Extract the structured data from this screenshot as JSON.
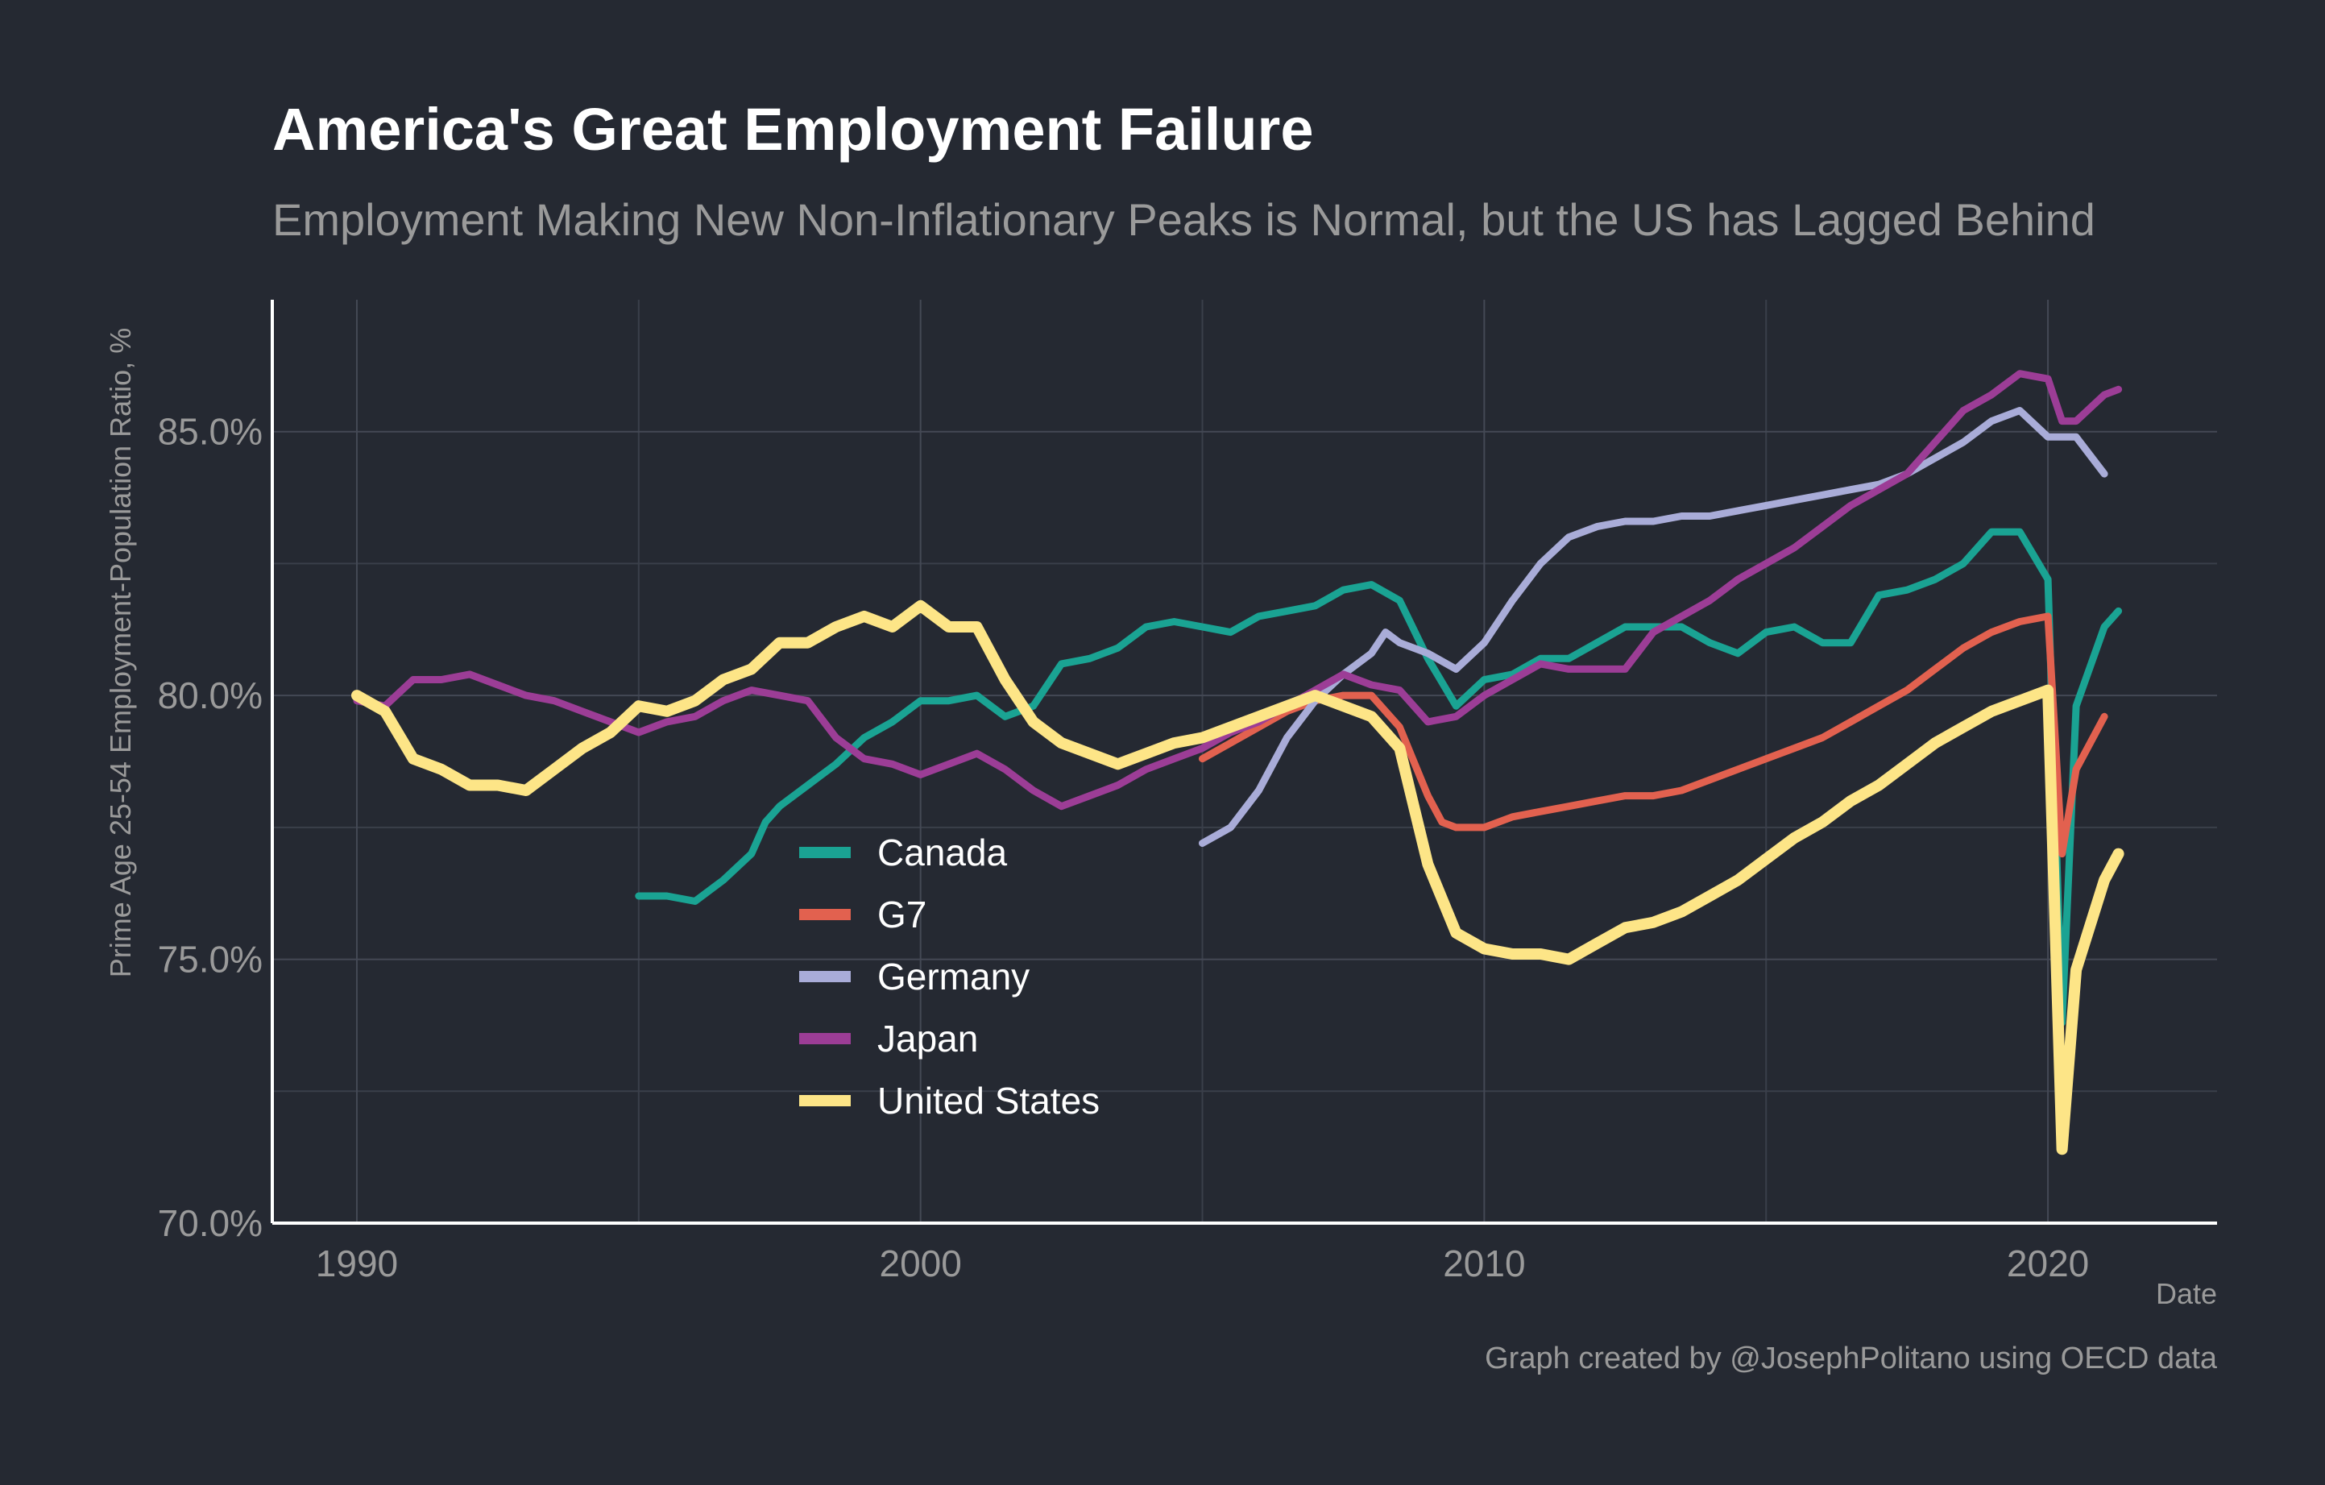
{
  "chart_data": {
    "type": "line",
    "title": "America's Great Employment Failure",
    "subtitle": "Employment Making New Non-Inflationary Peaks is Normal, but the US has Lagged Behind",
    "xlabel": "Date",
    "ylabel": "Prime Age 25-54 Employment-Population Ratio, %",
    "caption": "Graph created by @JosephPolitano using OECD data",
    "xlim": [
      1988.5,
      2023.0
    ],
    "ylim": [
      70.0,
      87.5
    ],
    "x_ticks": [
      1990,
      2000,
      2010,
      2020
    ],
    "x_tick_labels": [
      "1990",
      "2000",
      "2010",
      "2020"
    ],
    "y_ticks": [
      70,
      75,
      80,
      85
    ],
    "y_tick_labels": [
      "70.0%",
      "75.0%",
      "80.0%",
      "85.0%"
    ],
    "grid": true,
    "legend_position": "inside-center-left",
    "series": [
      {
        "name": "Canada",
        "color": "#1aa393",
        "x": [
          1995.0,
          1995.5,
          1996.0,
          1996.5,
          1997.0,
          1997.25,
          1997.5,
          1998.0,
          1998.5,
          1999.0,
          1999.5,
          2000.0,
          2000.5,
          2001.0,
          2001.5,
          2002.0,
          2002.5,
          2003.0,
          2003.5,
          2004.0,
          2004.5,
          2005.0,
          2005.5,
          2006.0,
          2006.5,
          2007.0,
          2007.5,
          2008.0,
          2008.5,
          2009.0,
          2009.5,
          2010.0,
          2010.5,
          2011.0,
          2011.5,
          2012.0,
          2012.5,
          2013.0,
          2013.5,
          2014.0,
          2014.5,
          2015.0,
          2015.5,
          2016.0,
          2016.5,
          2017.0,
          2017.5,
          2018.0,
          2018.5,
          2019.0,
          2019.5,
          2020.0,
          2020.25,
          2020.5,
          2021.0,
          2021.25
        ],
        "y": [
          76.2,
          76.2,
          76.1,
          76.5,
          77.0,
          77.6,
          77.9,
          78.3,
          78.7,
          79.2,
          79.5,
          79.9,
          79.9,
          80.0,
          79.6,
          79.8,
          80.6,
          80.7,
          80.9,
          81.3,
          81.4,
          81.3,
          81.2,
          81.5,
          81.6,
          81.7,
          82.0,
          82.1,
          81.8,
          80.7,
          79.8,
          80.3,
          80.4,
          80.7,
          80.7,
          81.0,
          81.3,
          81.3,
          81.3,
          81.0,
          80.8,
          81.2,
          81.3,
          81.0,
          81.0,
          81.9,
          82.0,
          82.2,
          82.5,
          83.1,
          83.1,
          82.2,
          73.8,
          79.8,
          81.3,
          81.6
        ]
      },
      {
        "name": "G7",
        "color": "#e2614f",
        "x": [
          2005.0,
          2005.5,
          2006.0,
          2006.5,
          2007.0,
          2007.5,
          2008.0,
          2008.5,
          2009.0,
          2009.25,
          2009.5,
          2010.0,
          2010.5,
          2011.0,
          2011.5,
          2012.0,
          2012.5,
          2013.0,
          2013.5,
          2014.0,
          2014.5,
          2015.0,
          2015.5,
          2016.0,
          2016.5,
          2017.0,
          2017.5,
          2018.0,
          2018.5,
          2019.0,
          2019.5,
          2020.0,
          2020.25,
          2020.5,
          2021.0
        ],
        "y": [
          78.8,
          79.1,
          79.4,
          79.7,
          79.9,
          80.0,
          80.0,
          79.4,
          78.1,
          77.6,
          77.5,
          77.5,
          77.7,
          77.8,
          77.9,
          78.0,
          78.1,
          78.1,
          78.2,
          78.4,
          78.6,
          78.8,
          79.0,
          79.2,
          79.5,
          79.8,
          80.1,
          80.5,
          80.9,
          81.2,
          81.4,
          81.5,
          77.0,
          78.6,
          79.6
        ]
      },
      {
        "name": "Germany",
        "color": "#a9acd8",
        "x": [
          2005.0,
          2005.5,
          2006.0,
          2006.5,
          2007.0,
          2007.5,
          2008.0,
          2008.25,
          2008.5,
          2009.0,
          2009.5,
          2010.0,
          2010.5,
          2011.0,
          2011.5,
          2012.0,
          2012.5,
          2013.0,
          2013.5,
          2014.0,
          2014.5,
          2015.0,
          2015.5,
          2016.0,
          2016.5,
          2017.0,
          2017.5,
          2018.0,
          2018.5,
          2019.0,
          2019.5,
          2020.0,
          2020.5,
          2021.0
        ],
        "y": [
          77.2,
          77.5,
          78.2,
          79.2,
          79.9,
          80.4,
          80.8,
          81.2,
          81.0,
          80.8,
          80.5,
          81.0,
          81.8,
          82.5,
          83.0,
          83.2,
          83.3,
          83.3,
          83.4,
          83.4,
          83.5,
          83.6,
          83.7,
          83.8,
          83.9,
          84.0,
          84.2,
          84.5,
          84.8,
          85.2,
          85.4,
          84.9,
          84.9,
          84.2
        ]
      },
      {
        "name": "Japan",
        "color": "#9c3d96",
        "x": [
          1990.0,
          1990.5,
          1991.0,
          1991.5,
          1992.0,
          1992.5,
          1993.0,
          1993.5,
          1994.0,
          1994.5,
          1995.0,
          1995.5,
          1996.0,
          1996.5,
          1997.0,
          1997.5,
          1998.0,
          1998.5,
          1999.0,
          1999.5,
          2000.0,
          2000.5,
          2001.0,
          2001.5,
          2002.0,
          2002.5,
          2003.0,
          2003.5,
          2004.0,
          2004.5,
          2005.0,
          2005.5,
          2006.0,
          2006.5,
          2007.0,
          2007.5,
          2008.0,
          2008.5,
          2009.0,
          2009.5,
          2010.0,
          2010.5,
          2011.0,
          2011.5,
          2012.0,
          2012.5,
          2013.0,
          2013.5,
          2014.0,
          2014.5,
          2015.0,
          2015.5,
          2016.0,
          2016.5,
          2017.0,
          2017.5,
          2018.0,
          2018.5,
          2019.0,
          2019.5,
          2020.0,
          2020.25,
          2020.5,
          2021.0,
          2021.25
        ],
        "y": [
          79.9,
          79.8,
          80.3,
          80.3,
          80.4,
          80.2,
          80.0,
          79.9,
          79.7,
          79.5,
          79.3,
          79.5,
          79.6,
          79.9,
          80.1,
          80.0,
          79.9,
          79.2,
          78.8,
          78.7,
          78.5,
          78.7,
          78.9,
          78.6,
          78.2,
          77.9,
          78.1,
          78.3,
          78.6,
          78.8,
          79.0,
          79.3,
          79.5,
          79.8,
          80.1,
          80.4,
          80.2,
          80.1,
          79.5,
          79.6,
          80.0,
          80.3,
          80.6,
          80.5,
          80.5,
          80.5,
          81.2,
          81.5,
          81.8,
          82.2,
          82.5,
          82.8,
          83.2,
          83.6,
          83.9,
          84.2,
          84.8,
          85.4,
          85.7,
          86.1,
          86.0,
          85.2,
          85.2,
          85.7,
          85.8
        ]
      },
      {
        "name": "United States",
        "color": "#fde587",
        "x": [
          1990.0,
          1990.5,
          1991.0,
          1991.5,
          1992.0,
          1992.5,
          1993.0,
          1993.5,
          1994.0,
          1994.5,
          1995.0,
          1995.5,
          1996.0,
          1996.5,
          1997.0,
          1997.5,
          1998.0,
          1998.5,
          1999.0,
          1999.5,
          2000.0,
          2000.5,
          2001.0,
          2001.5,
          2002.0,
          2002.5,
          2003.0,
          2003.5,
          2004.0,
          2004.5,
          2005.0,
          2005.5,
          2006.0,
          2006.5,
          2007.0,
          2007.5,
          2008.0,
          2008.5,
          2009.0,
          2009.5,
          2010.0,
          2010.5,
          2011.0,
          2011.5,
          2012.0,
          2012.5,
          2013.0,
          2013.5,
          2014.0,
          2014.5,
          2015.0,
          2015.5,
          2016.0,
          2016.5,
          2017.0,
          2017.5,
          2018.0,
          2018.5,
          2019.0,
          2019.5,
          2020.0,
          2020.25,
          2020.5,
          2021.0,
          2021.25
        ],
        "y": [
          80.0,
          79.7,
          78.8,
          78.6,
          78.3,
          78.3,
          78.2,
          78.6,
          79.0,
          79.3,
          79.8,
          79.7,
          79.9,
          80.3,
          80.5,
          81.0,
          81.0,
          81.3,
          81.5,
          81.3,
          81.7,
          81.3,
          81.3,
          80.3,
          79.5,
          79.1,
          78.9,
          78.7,
          78.9,
          79.1,
          79.2,
          79.4,
          79.6,
          79.8,
          80.0,
          79.8,
          79.6,
          79.0,
          76.8,
          75.5,
          75.2,
          75.1,
          75.1,
          75.0,
          75.3,
          75.6,
          75.7,
          75.9,
          76.2,
          76.5,
          76.9,
          77.3,
          77.6,
          78.0,
          78.3,
          78.7,
          79.1,
          79.4,
          79.7,
          79.9,
          80.1,
          71.4,
          74.8,
          76.5,
          77.0
        ]
      }
    ]
  }
}
